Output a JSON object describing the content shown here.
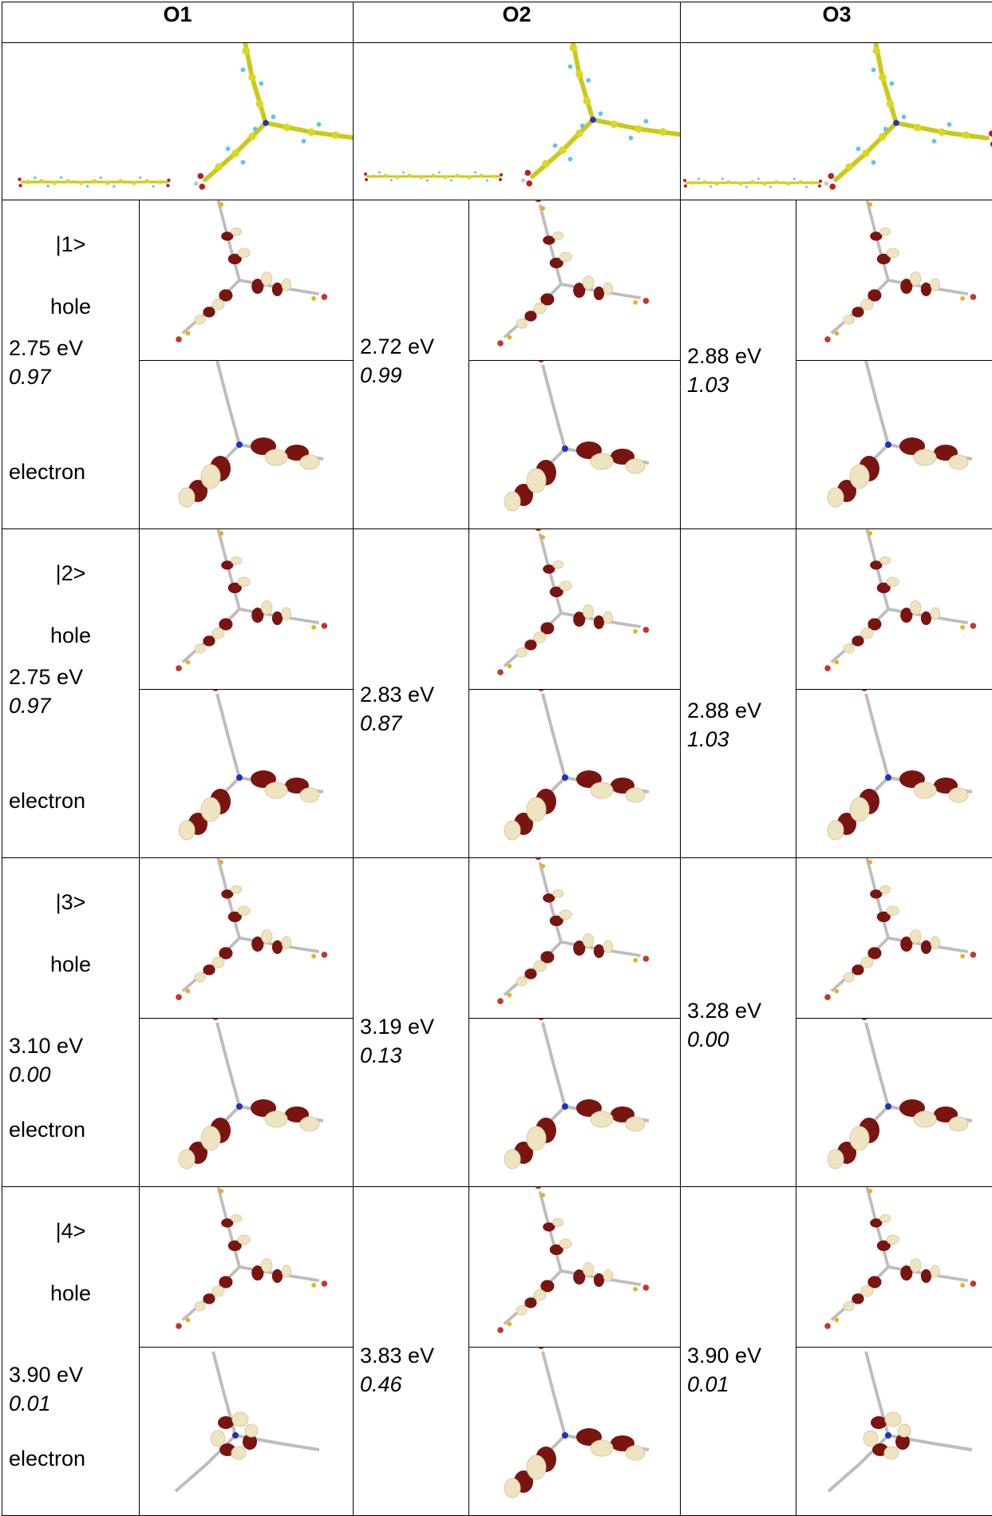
{
  "columns": [
    "O1",
    "O2",
    "O3"
  ],
  "labels": {
    "hole": "hole",
    "electron": "electron"
  },
  "states": [
    {
      "ket": "|1>",
      "o1": {
        "energy": "2.75 eV",
        "osc": "0.97"
      },
      "o2": {
        "energy": "2.72 eV",
        "osc": "0.99"
      },
      "o3": {
        "energy": "2.88 eV",
        "osc": "1.03"
      }
    },
    {
      "ket": "|2>",
      "o1": {
        "energy": "2.75 eV",
        "osc": "0.97"
      },
      "o2": {
        "energy": "2.83 eV",
        "osc": "0.87"
      },
      "o3": {
        "energy": "2.88 eV",
        "osc": "1.03"
      }
    },
    {
      "ket": "|3>",
      "o1": {
        "energy": "3.10 eV",
        "osc": "0.00"
      },
      "o2": {
        "energy": "3.19 eV",
        "osc": "0.13"
      },
      "o3": {
        "energy": "3.28 eV",
        "osc": "0.00"
      }
    },
    {
      "ket": "|4>",
      "o1": {
        "energy": "3.90 eV",
        "osc": "0.01"
      },
      "o2": {
        "energy": "3.83 eV",
        "osc": "0.46"
      },
      "o3": {
        "energy": "3.90 eV",
        "osc": "0.01"
      }
    }
  ],
  "colors": {
    "lobe_dark": "#7a1410",
    "lobe_light": "#efe4c2",
    "atom_yellow": "#d8d820",
    "atom_cyan": "#55c8e8",
    "atom_red": "#b82020",
    "atom_blue": "#2030c0"
  }
}
